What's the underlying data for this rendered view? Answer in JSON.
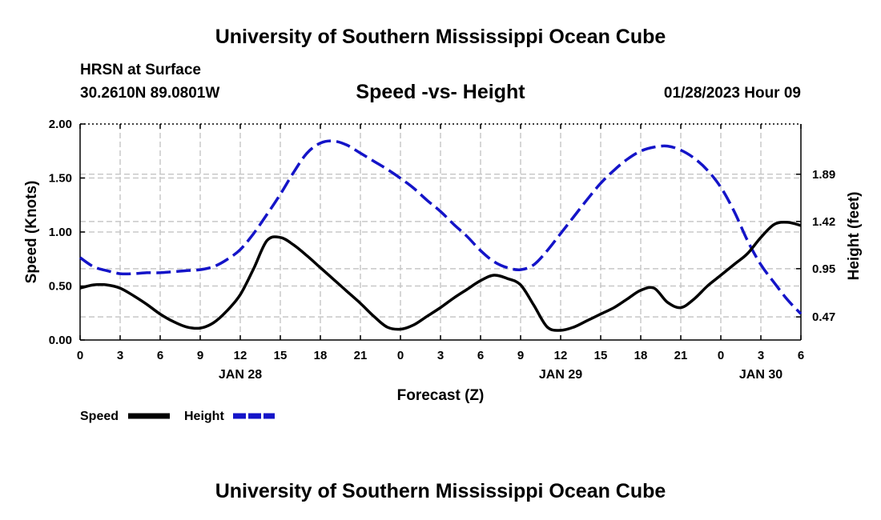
{
  "header": {
    "title": "University of Southern Mississippi Ocean Cube",
    "station": "HRSN at Surface",
    "coordinates": "30.2610N  89.0801W",
    "subtitle": "Speed -vs- Height",
    "datetime": "01/28/2023 Hour 09"
  },
  "footer": {
    "title": "University of Southern Mississippi Ocean Cube"
  },
  "chart_data": {
    "type": "line",
    "title": "Speed -vs- Height",
    "xlabel": "Forecast (Z)",
    "ylabel_left": "Speed (Knots)",
    "ylabel_right": "Height (feet)",
    "x_range": [
      0,
      54
    ],
    "x_ticks": [
      0,
      3,
      6,
      9,
      12,
      15,
      18,
      21,
      24,
      27,
      30,
      33,
      36,
      39,
      42,
      45,
      48,
      51,
      54
    ],
    "x_tick_labels": [
      "0",
      "3",
      "6",
      "9",
      "12",
      "15",
      "18",
      "21",
      "0",
      "3",
      "6",
      "9",
      "12",
      "15",
      "18",
      "21",
      "0",
      "3",
      "6"
    ],
    "date_labels": [
      {
        "x": 12,
        "label": "JAN 28"
      },
      {
        "x": 36,
        "label": "JAN 29"
      },
      {
        "x": 51,
        "label": "JAN 30"
      }
    ],
    "y_left_range": [
      0,
      2
    ],
    "y_left_ticks": [
      0,
      0.5,
      1,
      1.5,
      2
    ],
    "y_left_tick_labels": [
      "0.00",
      "0.50",
      "1.00",
      "1.50",
      "2.00"
    ],
    "y_right_range": [
      0.24,
      2.39
    ],
    "y_right_ticks": [
      0.47,
      0.95,
      1.42,
      1.89
    ],
    "y_right_tick_labels": [
      "0.47",
      "0.95",
      "1.42",
      "1.89"
    ],
    "grid": true,
    "legend": [
      {
        "label": "Speed",
        "color": "#000000",
        "style": "solid"
      },
      {
        "label": "Height",
        "color": "#1414c8",
        "style": "dashed"
      }
    ],
    "series": [
      {
        "name": "Speed",
        "axis": "left",
        "color": "#000000",
        "x": [
          0,
          1,
          2,
          3,
          4,
          5,
          6,
          7,
          8,
          9,
          10,
          11,
          12,
          13,
          14,
          15,
          16,
          17,
          18,
          19,
          20,
          21,
          22,
          23,
          24,
          25,
          26,
          27,
          28,
          29,
          30,
          31,
          32,
          33,
          34,
          35,
          36,
          37,
          38,
          39,
          40,
          41,
          42,
          43,
          44,
          45,
          46,
          47,
          48,
          49,
          50,
          51,
          52,
          53,
          54
        ],
        "values": [
          0.48,
          0.51,
          0.51,
          0.48,
          0.41,
          0.33,
          0.24,
          0.17,
          0.12,
          0.11,
          0.16,
          0.27,
          0.42,
          0.66,
          0.92,
          0.95,
          0.88,
          0.78,
          0.67,
          0.56,
          0.45,
          0.34,
          0.22,
          0.12,
          0.1,
          0.14,
          0.22,
          0.3,
          0.39,
          0.47,
          0.55,
          0.6,
          0.57,
          0.51,
          0.32,
          0.12,
          0.09,
          0.12,
          0.18,
          0.24,
          0.3,
          0.38,
          0.46,
          0.48,
          0.35,
          0.3,
          0.38,
          0.5,
          0.6,
          0.7,
          0.8,
          0.95,
          1.07,
          1.09,
          1.06
        ]
      },
      {
        "name": "Height",
        "axis": "right",
        "color": "#1414c8",
        "x": [
          0,
          1,
          2,
          3,
          4,
          5,
          6,
          7,
          8,
          9,
          10,
          11,
          12,
          13,
          14,
          15,
          16,
          17,
          18,
          19,
          20,
          21,
          22,
          23,
          24,
          25,
          26,
          27,
          28,
          29,
          30,
          31,
          32,
          33,
          34,
          35,
          36,
          37,
          38,
          39,
          40,
          41,
          42,
          43,
          44,
          45,
          46,
          47,
          48,
          49,
          50,
          51,
          52,
          53,
          54
        ],
        "values": [
          1.06,
          0.97,
          0.93,
          0.9,
          0.9,
          0.91,
          0.91,
          0.92,
          0.93,
          0.94,
          0.97,
          1.04,
          1.14,
          1.3,
          1.49,
          1.69,
          1.91,
          2.1,
          2.2,
          2.22,
          2.18,
          2.1,
          2.02,
          1.94,
          1.85,
          1.75,
          1.63,
          1.52,
          1.39,
          1.27,
          1.13,
          1.02,
          0.96,
          0.94,
          0.99,
          1.13,
          1.3,
          1.47,
          1.64,
          1.8,
          1.93,
          2.04,
          2.12,
          2.16,
          2.17,
          2.13,
          2.05,
          1.93,
          1.76,
          1.52,
          1.23,
          0.99,
          0.81,
          0.64,
          0.5
        ]
      }
    ]
  }
}
